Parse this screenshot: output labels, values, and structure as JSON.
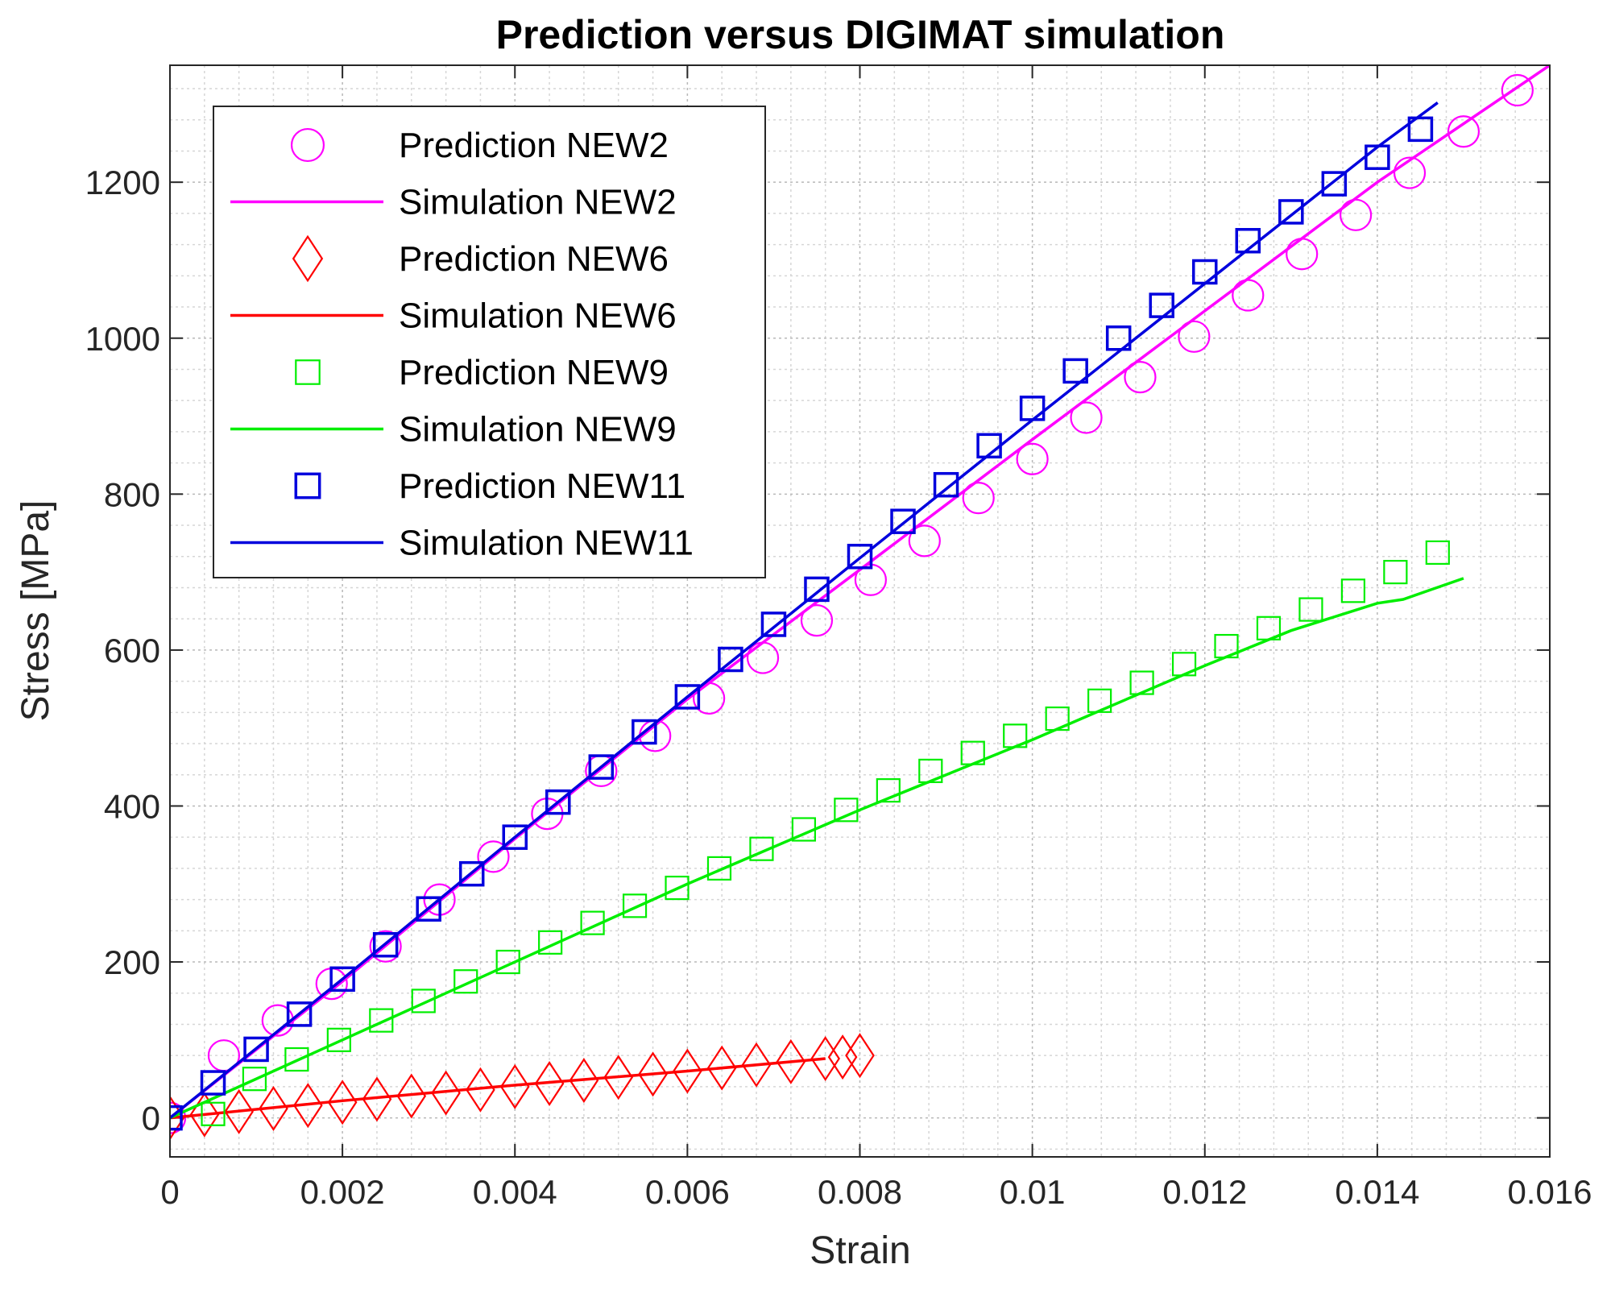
{
  "chart_data": {
    "type": "line",
    "title": "Prediction versus DIGIMAT simulation",
    "xlabel": "Strain",
    "ylabel": "Stress [MPa]",
    "xlim": [
      0,
      0.016
    ],
    "ylim": [
      -50,
      1350
    ],
    "xticks": [
      0,
      0.002,
      0.004,
      0.006,
      0.008,
      0.01,
      0.012,
      0.014,
      0.016
    ],
    "xtick_labels": [
      "0",
      "0.002",
      "0.004",
      "0.006",
      "0.008",
      "0.01",
      "0.012",
      "0.014",
      "0.016"
    ],
    "yticks": [
      0,
      200,
      400,
      600,
      800,
      1000,
      1200
    ],
    "ytick_labels": [
      "0",
      "200",
      "400",
      "600",
      "800",
      "1000",
      "1200"
    ],
    "grid": "major and minor",
    "legend_position": "top-left",
    "series": [
      {
        "name": "Prediction NEW2",
        "kind": "marker",
        "marker": "circle",
        "color": "#ff00ff",
        "x": [
          0,
          0.000625,
          0.00125,
          0.001875,
          0.0025,
          0.003125,
          0.00375,
          0.004375,
          0.005,
          0.005625,
          0.00625,
          0.006875,
          0.0075,
          0.008125,
          0.00875,
          0.009375,
          0.01,
          0.010625,
          0.01125,
          0.011875,
          0.0125,
          0.013125,
          0.01375,
          0.014375,
          0.015,
          0.015625
        ],
        "y": [
          0,
          80,
          125,
          172,
          220,
          280,
          335,
          390,
          445,
          490,
          538,
          590,
          638,
          690,
          740,
          795,
          845,
          898,
          950,
          1002,
          1055,
          1108,
          1158,
          1212,
          1265,
          1318
        ]
      },
      {
        "name": "Simulation NEW2",
        "kind": "line",
        "color": "#ff00ff",
        "x": [
          0,
          0.002,
          0.004,
          0.006,
          0.008,
          0.01,
          0.012,
          0.014,
          0.016
        ],
        "y": [
          0,
          175,
          358,
          537,
          703,
          870,
          1035,
          1200,
          1350
        ]
      },
      {
        "name": "Prediction NEW6",
        "kind": "marker",
        "marker": "diamond",
        "color": "#ff0000",
        "x": [
          0,
          0.0004,
          0.0008,
          0.0012,
          0.0016,
          0.002,
          0.0024,
          0.0028,
          0.0032,
          0.0036,
          0.004,
          0.0044,
          0.0048,
          0.0052,
          0.0056,
          0.006,
          0.0064,
          0.0068,
          0.0072,
          0.0076,
          0.0078,
          0.008
        ],
        "y": [
          0,
          4,
          8,
          12,
          16,
          20,
          24,
          28,
          32,
          36,
          40,
          44,
          48,
          52,
          56,
          60,
          64,
          68,
          72,
          76,
          78,
          80
        ]
      },
      {
        "name": "Simulation NEW6",
        "kind": "line",
        "color": "#ff0000",
        "x": [
          0,
          0.002,
          0.004,
          0.006,
          0.0076
        ],
        "y": [
          0,
          22,
          42,
          60,
          76
        ]
      },
      {
        "name": "Prediction NEW9",
        "kind": "marker",
        "marker": "square",
        "color": "#00ee00",
        "x": [
          0,
          0.0005,
          0.00098,
          0.00147,
          0.00196,
          0.00245,
          0.00294,
          0.00343,
          0.00392,
          0.00441,
          0.0049,
          0.00539,
          0.00588,
          0.00637,
          0.00686,
          0.00735,
          0.00784,
          0.00833,
          0.00882,
          0.00931,
          0.0098,
          0.01029,
          0.01078,
          0.01127,
          0.01176,
          0.01225,
          0.01274,
          0.01323,
          0.01372,
          0.01421,
          0.0147
        ],
        "y": [
          0,
          5,
          50,
          75,
          100,
          125,
          150,
          175,
          200,
          225,
          250,
          272,
          295,
          320,
          345,
          370,
          395,
          420,
          445,
          468,
          490,
          512,
          535,
          558,
          582,
          605,
          628,
          652,
          676,
          700,
          725
        ]
      },
      {
        "name": "Simulation NEW9",
        "kind": "line",
        "color": "#00ee00",
        "x": [
          0,
          0.002,
          0.004,
          0.006,
          0.008,
          0.01,
          0.012,
          0.013,
          0.014,
          0.0143,
          0.015
        ],
        "y": [
          0,
          100,
          200,
          300,
          395,
          485,
          580,
          625,
          660,
          665,
          692
        ]
      },
      {
        "name": "Prediction NEW11",
        "kind": "marker",
        "marker": "square",
        "color": "#0000dd",
        "x": [
          0,
          0.0005,
          0.001,
          0.0015,
          0.002,
          0.0025,
          0.003,
          0.0035,
          0.004,
          0.0045,
          0.005,
          0.0055,
          0.006,
          0.0065,
          0.007,
          0.0075,
          0.008,
          0.0085,
          0.009,
          0.0095,
          0.01,
          0.0105,
          0.011,
          0.0115,
          0.012,
          0.0125,
          0.013,
          0.0135,
          0.014,
          0.0145
        ],
        "y": [
          0,
          45,
          88,
          133,
          178,
          222,
          268,
          313,
          360,
          405,
          450,
          495,
          540,
          588,
          633,
          678,
          720,
          765,
          812,
          862,
          910,
          958,
          1000,
          1042,
          1085,
          1125,
          1162,
          1198,
          1232,
          1268
        ]
      },
      {
        "name": "Simulation NEW11",
        "kind": "line",
        "color": "#0000dd",
        "x": [
          0,
          0.002,
          0.004,
          0.006,
          0.008,
          0.01,
          0.012,
          0.014,
          0.0147
        ],
        "y": [
          0,
          178,
          360,
          540,
          718,
          895,
          1070,
          1245,
          1302
        ]
      }
    ]
  }
}
